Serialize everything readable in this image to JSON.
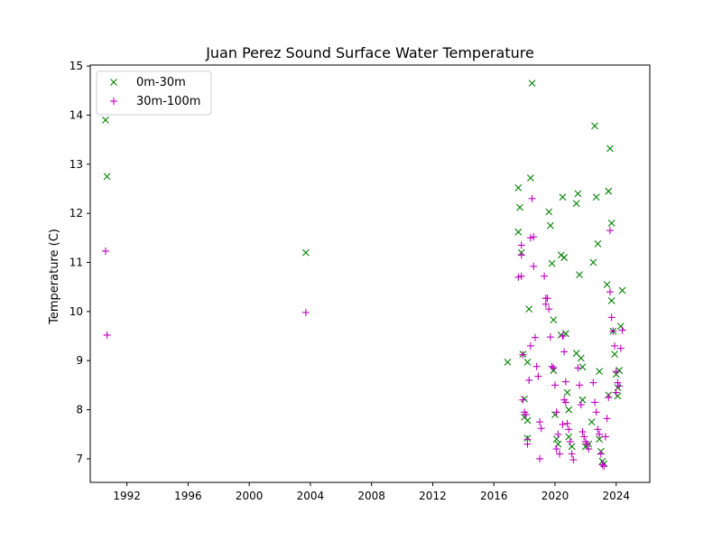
{
  "chart_data": {
    "type": "scatter",
    "title": "Juan Perez Sound Surface Water Temperature",
    "xlabel": "",
    "ylabel": "Temperature (C)",
    "xlim": [
      1989.6,
      2026.2
    ],
    "ylim": [
      6.52,
      15.02
    ],
    "grid": false,
    "legend_position": "top-left",
    "x_ticks": [
      {
        "value": 1992,
        "label": "1992"
      },
      {
        "value": 1996,
        "label": "1996"
      },
      {
        "value": 2000,
        "label": "2000"
      },
      {
        "value": 2004,
        "label": "2004"
      },
      {
        "value": 2008,
        "label": "2008"
      },
      {
        "value": 2012,
        "label": "2012"
      },
      {
        "value": 2016,
        "label": "2016"
      },
      {
        "value": 2020,
        "label": "2020"
      },
      {
        "value": 2024,
        "label": "2024"
      }
    ],
    "y_ticks": [
      {
        "value": 7,
        "label": "7"
      },
      {
        "value": 8,
        "label": "8"
      },
      {
        "value": 9,
        "label": "9"
      },
      {
        "value": 10,
        "label": "10"
      },
      {
        "value": 11,
        "label": "11"
      },
      {
        "value": 12,
        "label": "12"
      },
      {
        "value": 13,
        "label": "13"
      },
      {
        "value": 14,
        "label": "14"
      },
      {
        "value": 15,
        "label": "15"
      }
    ],
    "series": [
      {
        "name": "0m-30m",
        "marker": "x",
        "color": "#008000",
        "points": [
          [
            1990.6,
            13.9
          ],
          [
            1990.7,
            12.75
          ],
          [
            2003.7,
            11.2
          ],
          [
            2016.9,
            8.97
          ],
          [
            2017.6,
            12.52
          ],
          [
            2017.7,
            12.12
          ],
          [
            2017.6,
            11.62
          ],
          [
            2017.8,
            11.2
          ],
          [
            2017.9,
            9.13
          ],
          [
            2018.0,
            8.22
          ],
          [
            2018.0,
            7.85
          ],
          [
            2018.2,
            7.78
          ],
          [
            2018.2,
            7.42
          ],
          [
            2018.5,
            14.65
          ],
          [
            2018.4,
            12.72
          ],
          [
            2018.3,
            10.05
          ],
          [
            2018.2,
            8.97
          ],
          [
            2019.6,
            12.03
          ],
          [
            2019.7,
            11.75
          ],
          [
            2019.8,
            10.98
          ],
          [
            2019.9,
            9.83
          ],
          [
            2019.9,
            8.8
          ],
          [
            2020.0,
            7.9
          ],
          [
            2020.1,
            7.4
          ],
          [
            2020.2,
            7.3
          ],
          [
            2020.5,
            12.33
          ],
          [
            2020.4,
            11.15
          ],
          [
            2020.6,
            11.1
          ],
          [
            2020.4,
            9.52
          ],
          [
            2020.7,
            9.55
          ],
          [
            2020.8,
            8.35
          ],
          [
            2020.9,
            8.0
          ],
          [
            2020.9,
            7.45
          ],
          [
            2021.1,
            7.25
          ],
          [
            2021.5,
            12.4
          ],
          [
            2021.4,
            12.2
          ],
          [
            2021.6,
            10.75
          ],
          [
            2021.4,
            9.15
          ],
          [
            2021.7,
            9.05
          ],
          [
            2021.8,
            8.87
          ],
          [
            2021.8,
            8.2
          ],
          [
            2022.0,
            7.25
          ],
          [
            2022.2,
            7.3
          ],
          [
            2022.6,
            13.78
          ],
          [
            2022.7,
            12.33
          ],
          [
            2022.8,
            11.38
          ],
          [
            2022.5,
            11.0
          ],
          [
            2022.4,
            7.75
          ],
          [
            2022.9,
            8.78
          ],
          [
            2022.9,
            7.4
          ],
          [
            2023.0,
            7.15
          ],
          [
            2023.1,
            6.95
          ],
          [
            2023.2,
            6.9
          ],
          [
            2023.6,
            13.32
          ],
          [
            2023.5,
            12.45
          ],
          [
            2023.7,
            11.8
          ],
          [
            2023.4,
            10.55
          ],
          [
            2023.7,
            10.22
          ],
          [
            2023.8,
            9.6
          ],
          [
            2023.9,
            9.13
          ],
          [
            2024.0,
            8.72
          ],
          [
            2023.5,
            8.3
          ],
          [
            2024.1,
            8.45
          ],
          [
            2024.2,
            8.8
          ],
          [
            2024.1,
            8.28
          ],
          [
            2024.3,
            9.7
          ],
          [
            2024.4,
            10.43
          ]
        ]
      },
      {
        "name": "30m-100m",
        "marker": "+",
        "color": "#bf00bf",
        "points": [
          [
            1990.6,
            11.23
          ],
          [
            1990.7,
            9.52
          ],
          [
            2003.7,
            9.98
          ],
          [
            2017.6,
            10.7
          ],
          [
            2017.8,
            10.72
          ],
          [
            2017.8,
            11.15
          ],
          [
            2017.8,
            11.35
          ],
          [
            2017.9,
            9.12
          ],
          [
            2017.9,
            8.2
          ],
          [
            2018.0,
            7.95
          ],
          [
            2018.1,
            7.9
          ],
          [
            2018.2,
            7.4
          ],
          [
            2018.2,
            7.3
          ],
          [
            2018.3,
            8.6
          ],
          [
            2018.4,
            9.3
          ],
          [
            2018.5,
            12.3
          ],
          [
            2018.4,
            11.5
          ],
          [
            2018.6,
            11.52
          ],
          [
            2018.6,
            10.92
          ],
          [
            2018.7,
            9.47
          ],
          [
            2018.8,
            8.88
          ],
          [
            2018.9,
            8.68
          ],
          [
            2019.0,
            7.75
          ],
          [
            2019.1,
            7.62
          ],
          [
            2019.0,
            7.0
          ],
          [
            2019.3,
            10.72
          ],
          [
            2019.4,
            10.27
          ],
          [
            2019.5,
            10.27
          ],
          [
            2019.4,
            10.15
          ],
          [
            2019.6,
            10.05
          ],
          [
            2019.7,
            9.48
          ],
          [
            2019.8,
            8.88
          ],
          [
            2019.9,
            8.85
          ],
          [
            2020.0,
            8.5
          ],
          [
            2020.1,
            7.95
          ],
          [
            2020.2,
            7.5
          ],
          [
            2020.1,
            7.2
          ],
          [
            2020.3,
            7.1
          ],
          [
            2020.5,
            9.5
          ],
          [
            2020.6,
            9.18
          ],
          [
            2020.7,
            8.57
          ],
          [
            2020.6,
            8.2
          ],
          [
            2020.7,
            8.15
          ],
          [
            2020.8,
            7.72
          ],
          [
            2020.5,
            7.7
          ],
          [
            2020.9,
            7.6
          ],
          [
            2021.0,
            7.35
          ],
          [
            2021.1,
            7.1
          ],
          [
            2021.2,
            6.98
          ],
          [
            2021.5,
            8.85
          ],
          [
            2021.6,
            8.5
          ],
          [
            2021.7,
            8.1
          ],
          [
            2021.8,
            7.55
          ],
          [
            2021.9,
            7.45
          ],
          [
            2022.0,
            7.35
          ],
          [
            2022.1,
            7.3
          ],
          [
            2022.2,
            7.2
          ],
          [
            2022.5,
            8.55
          ],
          [
            2022.6,
            8.15
          ],
          [
            2022.7,
            7.95
          ],
          [
            2022.8,
            7.6
          ],
          [
            2022.9,
            7.5
          ],
          [
            2023.0,
            7.1
          ],
          [
            2023.1,
            6.88
          ],
          [
            2023.2,
            6.85
          ],
          [
            2023.3,
            7.45
          ],
          [
            2023.4,
            7.82
          ],
          [
            2023.5,
            8.25
          ],
          [
            2023.6,
            11.65
          ],
          [
            2023.6,
            10.4
          ],
          [
            2023.7,
            9.88
          ],
          [
            2023.8,
            9.6
          ],
          [
            2023.9,
            9.3
          ],
          [
            2024.0,
            8.78
          ],
          [
            2024.1,
            8.55
          ],
          [
            2024.0,
            8.35
          ],
          [
            2024.2,
            8.48
          ],
          [
            2024.3,
            9.25
          ],
          [
            2024.4,
            9.62
          ]
        ]
      }
    ]
  }
}
